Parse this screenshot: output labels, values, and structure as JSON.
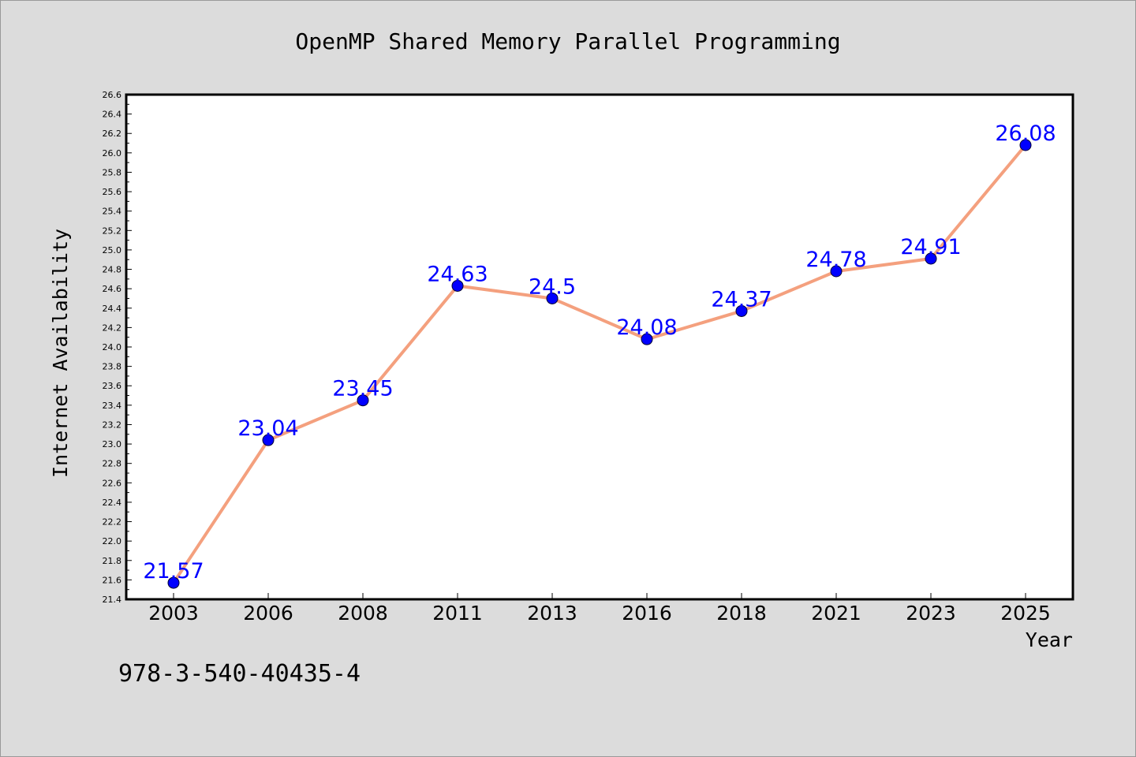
{
  "chart_data": {
    "type": "line",
    "title": "OpenMP Shared Memory Parallel Programming",
    "xlabel": "Year",
    "ylabel": "Internet Availability",
    "categories": [
      "2003",
      "2006",
      "2008",
      "2011",
      "2013",
      "2016",
      "2018",
      "2021",
      "2023",
      "2025"
    ],
    "series": [
      {
        "values": [
          21.57,
          23.04,
          23.45,
          24.63,
          24.5,
          24.08,
          24.37,
          24.78,
          24.91,
          26.08
        ],
        "line_color": "#f4a07e",
        "marker_color": "#0000ff"
      }
    ],
    "ylim": [
      21.4,
      26.6
    ],
    "yticks": [
      "21.4",
      "21.6",
      "21.8",
      "22.0",
      "22.2",
      "22.4",
      "22.6",
      "22.8",
      "23.0",
      "23.2",
      "23.4",
      "23.6",
      "23.8",
      "24.0",
      "24.2",
      "24.4",
      "24.6",
      "24.8",
      "25.0",
      "25.2",
      "25.4",
      "25.6",
      "25.8",
      "26.0",
      "26.2",
      "26.4",
      "26.6"
    ],
    "data_labels": [
      "21.57",
      "23.04",
      "23.45",
      "24.63",
      "24.5",
      "24.08",
      "24.37",
      "24.78",
      "24.91",
      "26.08"
    ],
    "grid": false,
    "legend": "none",
    "footer_text": "978-3-540-40435-4"
  }
}
